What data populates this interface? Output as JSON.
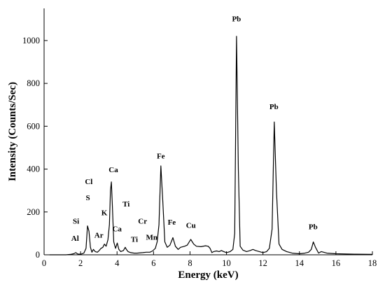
{
  "chart_data": {
    "type": "line",
    "title": "",
    "xlabel": "Energy (keV)",
    "ylabel": "Intensity (Counts/Sec)",
    "xlim": [
      0,
      18
    ],
    "ylim": [
      0,
      1150
    ],
    "xticks": [
      0,
      2,
      4,
      6,
      8,
      10,
      12,
      14,
      16,
      18
    ],
    "yticks": [
      0,
      200,
      400,
      600,
      800,
      1000
    ],
    "grid": false,
    "legend": "none",
    "line_color": "#000000",
    "series": [
      {
        "x": [
          0.3,
          1.2,
          1.45,
          1.55,
          1.62,
          1.74,
          1.84,
          1.95,
          2.05,
          2.18,
          2.3,
          2.38,
          2.46,
          2.54,
          2.62,
          2.7,
          2.8,
          2.92,
          3.02,
          3.12,
          3.22,
          3.31,
          3.4,
          3.5,
          3.58,
          3.64,
          3.69,
          3.74,
          3.82,
          3.92,
          4.01,
          4.1,
          4.2,
          4.35,
          4.45,
          4.51,
          4.6,
          4.75,
          4.93,
          5.1,
          5.41,
          5.6,
          5.8,
          5.95,
          6.1,
          6.2,
          6.3,
          6.4,
          6.5,
          6.62,
          6.75,
          6.9,
          7.06,
          7.2,
          7.35,
          7.48,
          7.7,
          7.85,
          8.04,
          8.2,
          8.35,
          8.6,
          8.85,
          9.0,
          9.1,
          9.2,
          9.3,
          9.45,
          9.6,
          9.72,
          9.85,
          10.0,
          10.2,
          10.35,
          10.45,
          10.55,
          10.65,
          10.75,
          10.9,
          11.1,
          11.3,
          11.45,
          11.6,
          11.8,
          12.0,
          12.2,
          12.35,
          12.5,
          12.62,
          12.74,
          12.88,
          13.05,
          13.3,
          13.6,
          14.0,
          14.3,
          14.5,
          14.65,
          14.76,
          14.88,
          15.05,
          15.2,
          15.5,
          16.0,
          17.0,
          18.0
        ],
        "y": [
          0,
          0,
          2,
          4,
          5,
          10,
          4,
          3,
          4,
          8,
          30,
          135,
          110,
          35,
          12,
          25,
          15,
          12,
          20,
          30,
          35,
          50,
          40,
          70,
          140,
          300,
          340,
          240,
          60,
          30,
          55,
          25,
          15,
          20,
          35,
          25,
          15,
          10,
          8,
          8,
          10,
          12,
          12,
          18,
          30,
          60,
          140,
          415,
          260,
          60,
          35,
          45,
          80,
          40,
          25,
          35,
          40,
          45,
          72,
          50,
          40,
          38,
          42,
          40,
          30,
          10,
          15,
          18,
          15,
          20,
          15,
          10,
          15,
          25,
          100,
          1020,
          400,
          40,
          22,
          15,
          20,
          25,
          20,
          15,
          10,
          15,
          30,
          120,
          620,
          300,
          50,
          25,
          15,
          8,
          5,
          8,
          12,
          25,
          60,
          35,
          8,
          15,
          8,
          5,
          3,
          2
        ]
      }
    ],
    "annotations": [
      {
        "text": "Al",
        "x": 1.7,
        "y": 65
      },
      {
        "text": "Si",
        "x": 1.75,
        "y": 145
      },
      {
        "text": "Cl",
        "x": 2.45,
        "y": 330
      },
      {
        "text": "S",
        "x": 2.4,
        "y": 255
      },
      {
        "text": "Ar",
        "x": 3.0,
        "y": 80
      },
      {
        "text": "K",
        "x": 3.3,
        "y": 185
      },
      {
        "text": "Ca",
        "x": 3.8,
        "y": 385
      },
      {
        "text": "Ca",
        "x": 4.0,
        "y": 110
      },
      {
        "text": "Ti",
        "x": 4.5,
        "y": 225
      },
      {
        "text": "Ti",
        "x": 4.95,
        "y": 60
      },
      {
        "text": "Cr",
        "x": 5.4,
        "y": 145
      },
      {
        "text": "Mn",
        "x": 5.9,
        "y": 70
      },
      {
        "text": "Fe",
        "x": 6.4,
        "y": 450
      },
      {
        "text": "Fe",
        "x": 7.0,
        "y": 140
      },
      {
        "text": "Cu",
        "x": 8.05,
        "y": 125
      },
      {
        "text": "Pb",
        "x": 10.55,
        "y": 1090
      },
      {
        "text": "Pb",
        "x": 12.6,
        "y": 680
      },
      {
        "text": "Pb",
        "x": 14.75,
        "y": 120
      }
    ]
  }
}
